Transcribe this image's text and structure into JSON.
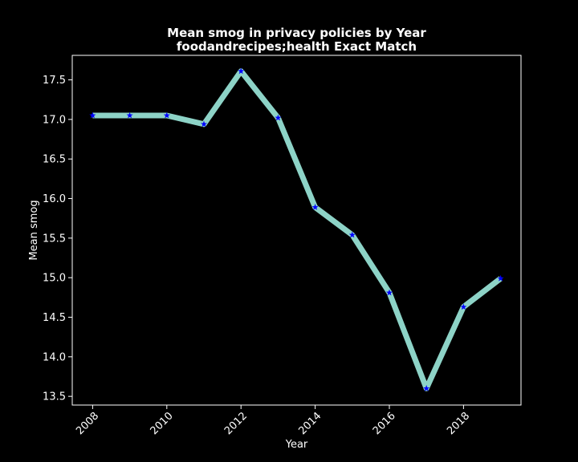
{
  "chart_data": {
    "type": "line",
    "title": "Mean smog in privacy policies by Year",
    "subtitle": "foodandrecipes;health Exact Match",
    "xlabel": "Year",
    "ylabel": "Mean smog",
    "x": [
      2008,
      2009,
      2010,
      2011,
      2012,
      2013,
      2014,
      2015,
      2016,
      2017,
      2018,
      2019
    ],
    "series": [
      {
        "values": [
          17.05,
          17.05,
          17.05,
          16.94,
          17.61,
          17.02,
          15.89,
          15.54,
          14.81,
          13.6,
          14.63,
          14.99
        ]
      }
    ],
    "xlim": [
      2007.45,
      2019.55
    ],
    "ylim": [
      13.39,
      17.81
    ],
    "x_ticks": [
      "2008",
      "2010",
      "2012",
      "2014",
      "2016",
      "2018"
    ],
    "y_ticks": [
      "13.5",
      "14.0",
      "14.5",
      "15.0",
      "15.5",
      "16.0",
      "16.5",
      "17.0",
      "17.5"
    ],
    "line_color": "#8dd3c7",
    "marker_color": "#0000ff",
    "background": "#000000",
    "grid": false,
    "legend": "none"
  }
}
